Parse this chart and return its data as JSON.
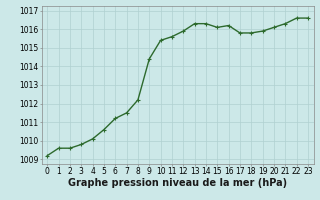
{
  "x": [
    0,
    1,
    2,
    3,
    4,
    5,
    6,
    7,
    8,
    9,
    10,
    11,
    12,
    13,
    14,
    15,
    16,
    17,
    18,
    19,
    20,
    21,
    22,
    23
  ],
  "y": [
    1009.2,
    1009.6,
    1009.6,
    1009.8,
    1010.1,
    1010.6,
    1011.2,
    1011.5,
    1012.2,
    1014.4,
    1015.4,
    1015.6,
    1015.9,
    1016.3,
    1016.3,
    1016.1,
    1016.2,
    1015.8,
    1015.8,
    1015.9,
    1016.1,
    1016.3,
    1016.6,
    1016.6
  ],
  "ylim": [
    1008.75,
    1017.25
  ],
  "xlim": [
    -0.5,
    23.5
  ],
  "yticks": [
    1009,
    1010,
    1011,
    1012,
    1013,
    1014,
    1015,
    1016,
    1017
  ],
  "xticks": [
    0,
    1,
    2,
    3,
    4,
    5,
    6,
    7,
    8,
    9,
    10,
    11,
    12,
    13,
    14,
    15,
    16,
    17,
    18,
    19,
    20,
    21,
    22,
    23
  ],
  "line_color": "#2d6a2d",
  "marker_color": "#2d6a2d",
  "bg_color": "#cce8e8",
  "grid_color": "#b0d0d0",
  "xlabel": "Graphe pression niveau de la mer (hPa)",
  "xlabel_fontsize": 7,
  "tick_fontsize": 5.5,
  "line_width": 1.0,
  "marker_size": 2.5
}
